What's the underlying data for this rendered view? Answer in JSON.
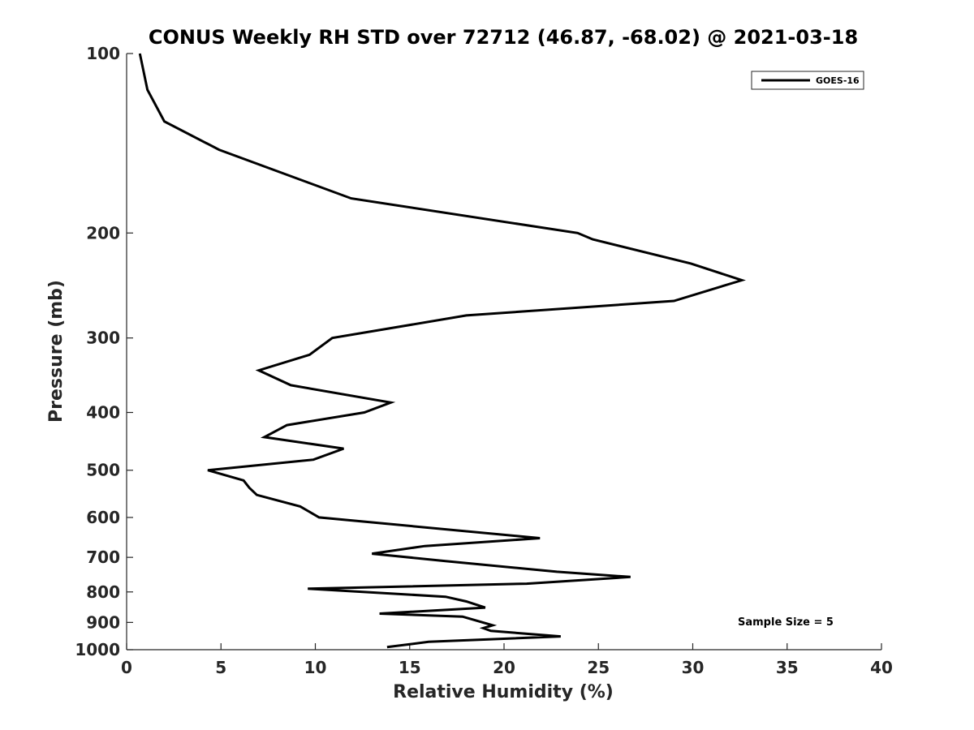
{
  "chart_data": {
    "type": "line",
    "title": "CONUS Weekly RH STD over 72712 (46.87, -68.02) @ 2021-03-18",
    "xlabel": "Relative Humidity (%)",
    "ylabel": "Pressure (mb)",
    "xlim": [
      0,
      40
    ],
    "ylim": [
      100,
      1000
    ],
    "y_scale": "log",
    "y_reversed": true,
    "x_ticks": [
      0,
      5,
      10,
      15,
      20,
      25,
      30,
      35,
      40
    ],
    "y_ticks": [
      100,
      200,
      300,
      400,
      500,
      600,
      700,
      800,
      900,
      1000
    ],
    "legend": {
      "entries": [
        "GOES-16"
      ],
      "location": "top-right"
    },
    "annotation": "Sample Size = 5",
    "series": [
      {
        "name": "GOES-16",
        "color": "#000000",
        "x": [
          0.7,
          1.1,
          2.0,
          4.9,
          11.9,
          23.9,
          24.7,
          29.9,
          32.6,
          29.0,
          18.0,
          10.9,
          9.7,
          7.0,
          8.7,
          14.0,
          12.6,
          8.5,
          7.3,
          11.5,
          9.9,
          4.3,
          6.2,
          6.5,
          6.9,
          9.2,
          10.2,
          21.9,
          15.8,
          13.0,
          16.9,
          22.8,
          26.7,
          21.2,
          9.6,
          16.9,
          18.0,
          19.0,
          13.4,
          17.8,
          19.4,
          18.9,
          19.3,
          23.0,
          16.0,
          13.8
        ],
        "y": [
          100,
          115,
          130,
          145,
          175,
          200,
          205,
          225,
          240,
          260,
          275,
          300,
          320,
          340,
          360,
          385,
          400,
          420,
          440,
          460,
          480,
          500,
          520,
          535,
          550,
          575,
          600,
          650,
          670,
          690,
          710,
          740,
          755,
          775,
          790,
          815,
          830,
          850,
          870,
          880,
          910,
          920,
          930,
          950,
          970,
          990
        ]
      }
    ]
  }
}
